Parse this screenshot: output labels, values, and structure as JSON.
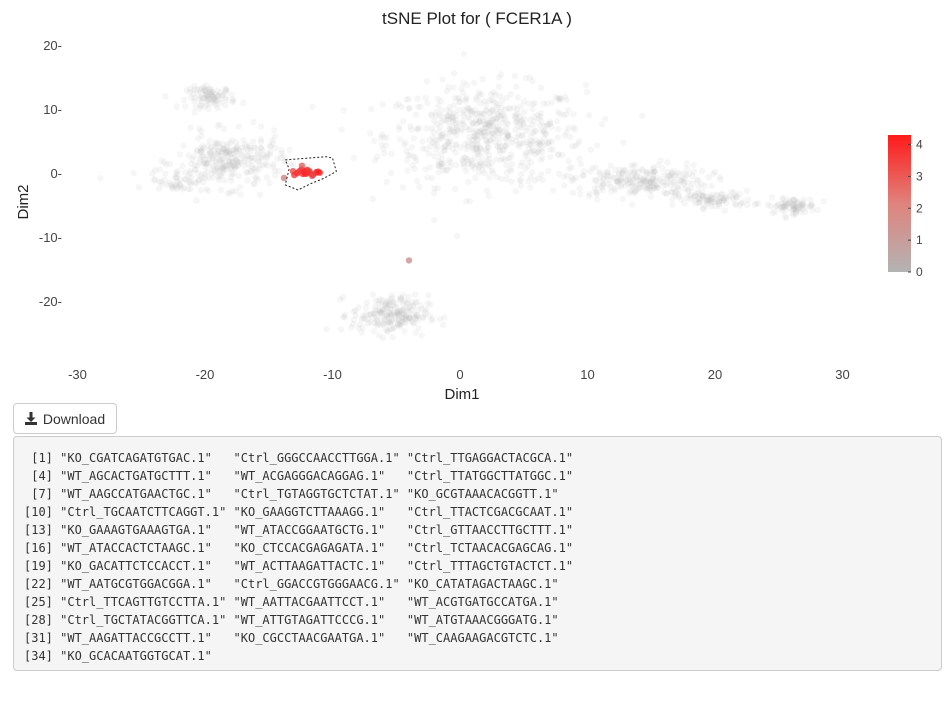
{
  "chart_data": {
    "type": "scatter",
    "title": "tSNE Plot for ( FCER1A )",
    "xlabel": "Dim1",
    "ylabel": "Dim2",
    "xlim": [
      -32,
      34
    ],
    "ylim": [
      -27,
      21
    ],
    "xticks": [
      -30,
      -20,
      -10,
      0,
      10,
      20,
      30
    ],
    "xtick_labels": [
      "-30",
      "-20",
      "-10",
      "0",
      "10",
      "20",
      "30"
    ],
    "yticks": [
      20,
      10,
      0,
      -10,
      -20
    ],
    "ytick_labels": [
      "20-",
      "10-",
      "0-",
      "-10-",
      "-20-"
    ],
    "grid": false,
    "point_colors": {
      "low": "#b3b3b3",
      "high": "#ff1a1a"
    },
    "colorbar": {
      "min": 0,
      "max": 4.3,
      "ticks": [
        4,
        3,
        2,
        1,
        0
      ],
      "tick_labels": [
        "4",
        "3",
        "2",
        "1",
        "0"
      ],
      "placement": "right"
    },
    "clusters": [
      {
        "cx": 2,
        "cy": 6,
        "sx": 6.5,
        "sy": 6.5,
        "n": 620,
        "value": 0
      },
      {
        "cx": 14,
        "cy": -1,
        "sx": 4.5,
        "sy": 2.2,
        "n": 240,
        "value": 0
      },
      {
        "cx": 20,
        "cy": -4,
        "sx": 2.5,
        "sy": 1.1,
        "n": 90,
        "value": 0
      },
      {
        "cx": 26,
        "cy": -5,
        "sx": 1.6,
        "sy": 1.0,
        "n": 80,
        "value": 0
      },
      {
        "cx": -19.5,
        "cy": 12,
        "sx": 1.6,
        "sy": 1.4,
        "n": 90,
        "value": 0
      },
      {
        "cx": -18,
        "cy": 2,
        "sx": 3.5,
        "sy": 3.5,
        "n": 280,
        "value": 0
      },
      {
        "cx": -22,
        "cy": -1,
        "sx": 2,
        "sy": 1.5,
        "n": 50,
        "value": 0
      },
      {
        "cx": -5.5,
        "cy": -22,
        "sx": 2.5,
        "sy": 2.5,
        "n": 210,
        "value": 0
      },
      {
        "cx": -12,
        "cy": 0.3,
        "sx": 0.7,
        "sy": 0.45,
        "n": 22,
        "value": 3.6
      }
    ],
    "points": [
      {
        "x": -28.2,
        "y": -0.7,
        "value": 0
      },
      {
        "x": -4,
        "y": -13.5,
        "value": 1.2
      },
      {
        "x": -13.8,
        "y": -0.6,
        "value": 1.5
      },
      {
        "x": -11,
        "y": 0.2,
        "value": 4.2
      },
      {
        "x": -12.4,
        "y": 1.3,
        "value": 2.5
      },
      {
        "x": -11.6,
        "y": -0.3,
        "value": 3.0
      }
    ],
    "selection_polygon": [
      [
        -13.7,
        2.2
      ],
      [
        -10.5,
        2.7
      ],
      [
        -10,
        2.5
      ],
      [
        -9.7,
        0.4
      ],
      [
        -10.7,
        -0.7
      ],
      [
        -11.7,
        -1.5
      ],
      [
        -12.7,
        -2.5
      ],
      [
        -13.7,
        -1.7
      ],
      [
        -13.4,
        0.8
      ]
    ]
  },
  "download_button": {
    "label": "Download",
    "icon": "download-icon"
  },
  "output_lines": [
    " [1] \"KO_CGATCAGATGTGAC.1\"   \"Ctrl_GGGCCAACCTTGGA.1\" \"Ctrl_TTGAGGACTACGCA.1\"",
    " [4] \"WT_AGCACTGATGCTTT.1\"   \"WT_ACGAGGGACAGGAG.1\"   \"Ctrl_TTATGGCTTATGGC.1\"",
    " [7] \"WT_AAGCCATGAACTGC.1\"   \"Ctrl_TGTAGGTGCTCTAT.1\" \"KO_GCGTAAACACGGTT.1\"",
    "[10] \"Ctrl_TGCAATCTTCAGGT.1\" \"KO_GAAGGTCTTAAAGG.1\"   \"Ctrl_TTACTCGACGCAAT.1\"",
    "[13] \"KO_GAAAGTGAAAGTGA.1\"   \"WT_ATACCGGAATGCTG.1\"   \"Ctrl_GTTAACCTTGCTTT.1\"",
    "[16] \"WT_ATACCACTCTAAGC.1\"   \"KO_CTCCACGAGAGATA.1\"   \"Ctrl_TCTAACACGAGCAG.1\"",
    "[19] \"KO_GACATTCTCCACCT.1\"   \"WT_ACTTAAGATTACTC.1\"   \"Ctrl_TTTAGCTGTACTCT.1\"",
    "[22] \"WT_AATGCGTGGACGGA.1\"   \"Ctrl_GGACCGTGGGAACG.1\" \"KO_CATATAGACTAAGC.1\"",
    "[25] \"Ctrl_TTCAGTTGTCCTTA.1\" \"WT_AATTACGAATTCCT.1\"   \"WT_ACGTGATGCCATGA.1\"",
    "[28] \"Ctrl_TGCTATACGGTTCA.1\" \"WT_ATTGTAGATTCCCG.1\"   \"WT_ATGTAAACGGGATG.1\"",
    "[31] \"WT_AAGATTACCGCCTT.1\"   \"KO_CGCCTAACGAATGA.1\"   \"WT_CAAGAAGACGTCTC.1\"",
    "[34] \"KO_GCACAATGGTGCAT.1\""
  ]
}
